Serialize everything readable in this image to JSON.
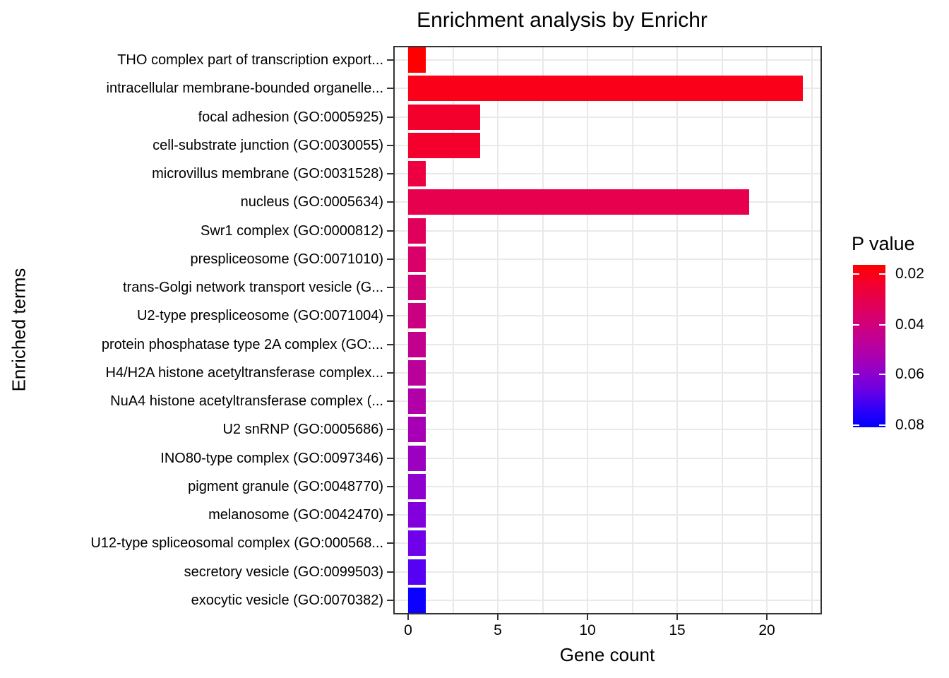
{
  "title": "Enrichment analysis by Enrichr",
  "axes": {
    "x_title": "Gene count",
    "y_title": "Enriched terms",
    "x_tick_labels": [
      "0",
      "5",
      "10",
      "15",
      "20"
    ]
  },
  "legend": {
    "title": "P value",
    "tick_labels": [
      "0.02",
      "0.04",
      "0.06",
      "0.08"
    ],
    "gradient_stops": [
      "#FF0000",
      "#F3002C",
      "#E50050",
      "#D60070",
      "#C30090",
      "#AD00AE",
      "#8F00CB",
      "#6900E5",
      "#3000F7",
      "#0000FF"
    ]
  },
  "chart_data": {
    "type": "bar",
    "orientation": "horizontal",
    "title": "Enrichment analysis by Enrichr",
    "xlabel": "Gene count",
    "ylabel": "Enriched terms",
    "xlim": [
      -1.1,
      23.1
    ],
    "x_major_ticks": [
      0,
      5,
      10,
      15,
      20
    ],
    "x_minor_gridlines": [
      2.5,
      7.5,
      12.5,
      17.5,
      22.5
    ],
    "grid": true,
    "legend_position": "right",
    "categories": [
      "THO complex part of transcription export...",
      "intracellular membrane-bounded organelle...",
      "focal adhesion (GO:0005925)",
      "cell-substrate junction (GO:0030055)",
      "microvillus membrane (GO:0031528)",
      "nucleus (GO:0005634)",
      "Swr1 complex (GO:0000812)",
      "prespliceosome (GO:0071010)",
      "trans-Golgi network transport vesicle (G...",
      "U2-type prespliceosome (GO:0071004)",
      "protein phosphatase type 2A complex (GO:...",
      "H4/H2A histone acetyltransferase complex...",
      "NuA4 histone acetyltransferase complex (...",
      "U2 snRNP (GO:0005686)",
      "INO80-type complex (GO:0097346)",
      "pigment granule (GO:0048770)",
      "melanosome (GO:0042470)",
      "U12-type spliceosomal complex (GO:000568...",
      "secretory vesicle (GO:0099503)",
      "exocytic vesicle (GO:0070382)"
    ],
    "values": [
      1,
      22,
      4,
      4,
      1,
      19,
      1,
      1,
      1,
      1,
      1,
      1,
      1,
      1,
      1,
      1,
      1,
      1,
      1,
      1
    ],
    "bar_colors": [
      "#FF0000",
      "#FA0019",
      "#F4002D",
      "#F4002D",
      "#EC0042",
      "#E6004E",
      "#E0005C",
      "#D90069",
      "#D20075",
      "#CB0081",
      "#C3008E",
      "#BA009B",
      "#B100A8",
      "#A700B4",
      "#9C00C1",
      "#9000CE",
      "#8100DC",
      "#7000E9",
      "#5600F4",
      "#0C00FF"
    ],
    "color_scale": {
      "label": "P value",
      "low_value_color": "#FF0000",
      "high_value_color": "#0000FF",
      "tick_values": [
        0.02,
        0.04,
        0.06,
        0.08
      ]
    }
  }
}
